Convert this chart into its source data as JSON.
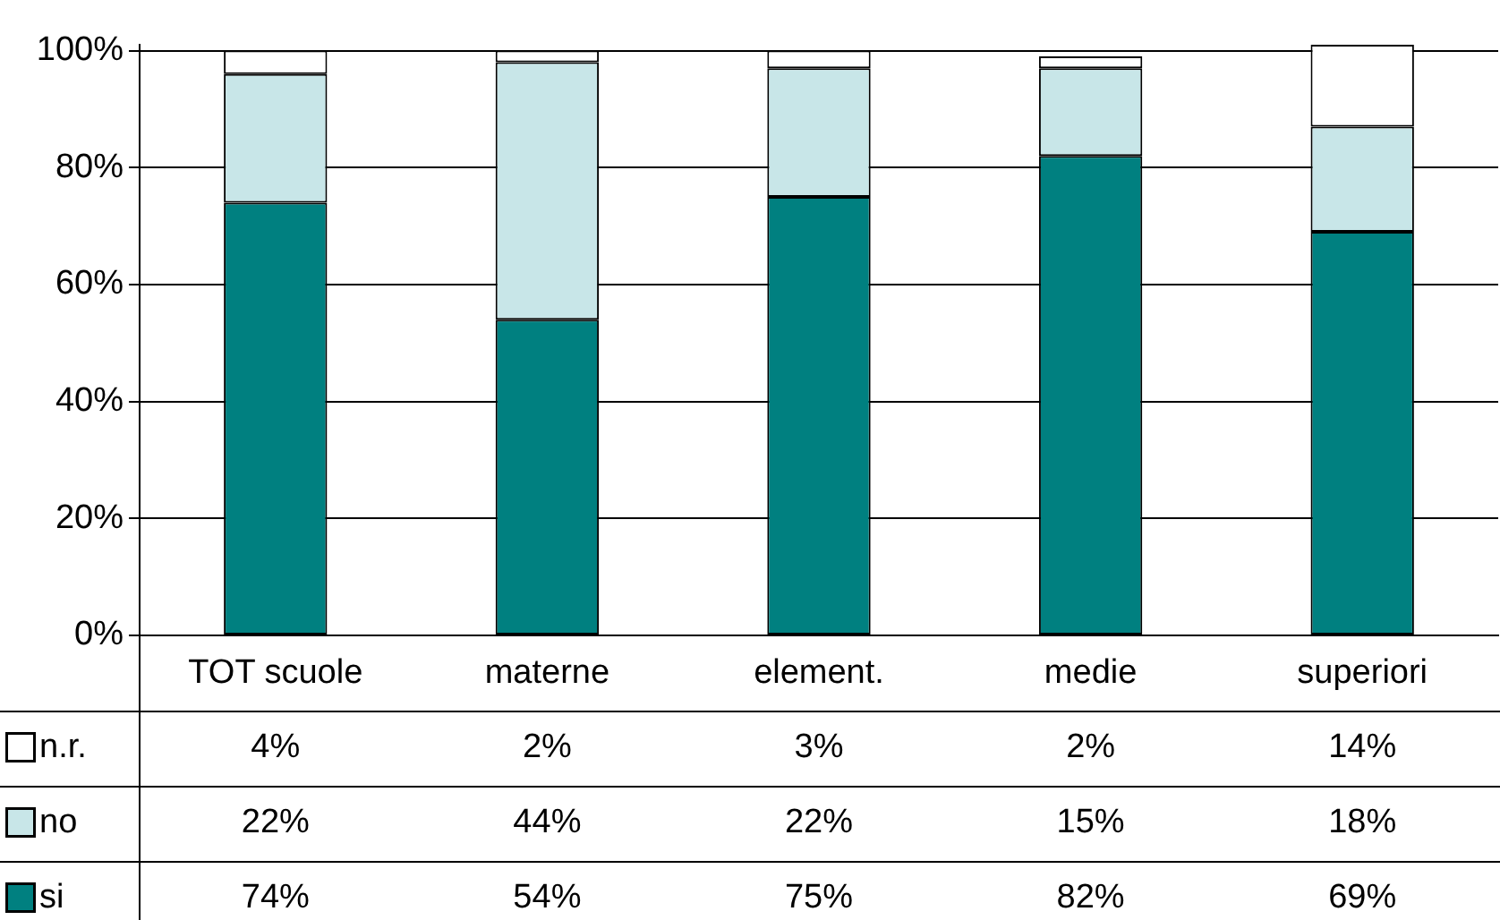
{
  "chart_data": {
    "type": "bar",
    "stacked": true,
    "categories": [
      "TOT scuole",
      "materne",
      "element.",
      "medie",
      "superiori"
    ],
    "series": [
      {
        "name": "si",
        "color": "#008080",
        "values": [
          74,
          54,
          75,
          82,
          69
        ],
        "value_labels": [
          "74%",
          "54%",
          "75%",
          "82%",
          "69%"
        ]
      },
      {
        "name": "no",
        "color": "#c8e6e8",
        "values": [
          22,
          44,
          22,
          15,
          18
        ],
        "value_labels": [
          "22%",
          "44%",
          "22%",
          "15%",
          "18%"
        ]
      },
      {
        "name": "n.r.",
        "color": "#ffffff",
        "values": [
          4,
          2,
          3,
          2,
          14
        ],
        "value_labels": [
          "4%",
          "2%",
          "3%",
          "2%",
          "14%"
        ]
      }
    ],
    "ylim": [
      0,
      101
    ],
    "yticks": [
      {
        "value": 0,
        "label": "0%"
      },
      {
        "value": 20,
        "label": "20%"
      },
      {
        "value": 40,
        "label": "40%"
      },
      {
        "value": 60,
        "label": "60%"
      },
      {
        "value": 80,
        "label": "80%"
      },
      {
        "value": 100,
        "label": "100%"
      }
    ],
    "grid": "y",
    "legend": "bottom left"
  }
}
